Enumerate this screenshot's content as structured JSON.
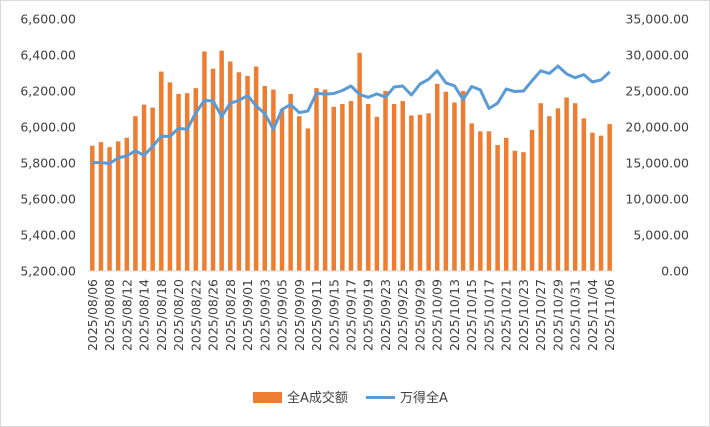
{
  "colors": {
    "bars": "#ED7D31",
    "line": "#5B9BD5",
    "axis": "#D9D9D9",
    "text": "#404040"
  },
  "chart_data": {
    "type": "bar+line",
    "dates": [
      "2025/08/06",
      "2025/08/07",
      "2025/08/08",
      "2025/08/11",
      "2025/08/12",
      "2025/08/13",
      "2025/08/14",
      "2025/08/15",
      "2025/08/18",
      "2025/08/19",
      "2025/08/20",
      "2025/08/21",
      "2025/08/22",
      "2025/08/25",
      "2025/08/26",
      "2025/08/27",
      "2025/08/28",
      "2025/08/29",
      "2025/09/01",
      "2025/09/02",
      "2025/09/03",
      "2025/09/04",
      "2025/09/05",
      "2025/09/08",
      "2025/09/09",
      "2025/09/10",
      "2025/09/11",
      "2025/09/12",
      "2025/09/15",
      "2025/09/16",
      "2025/09/17",
      "2025/09/18",
      "2025/09/19",
      "2025/09/22",
      "2025/09/23",
      "2025/09/24",
      "2025/09/25",
      "2025/09/26",
      "2025/09/29",
      "2025/09/30",
      "2025/10/09",
      "2025/10/10",
      "2025/10/13",
      "2025/10/14",
      "2025/10/15",
      "2025/10/16",
      "2025/10/17",
      "2025/10/20",
      "2025/10/21",
      "2025/10/22",
      "2025/10/23",
      "2025/10/24",
      "2025/10/27",
      "2025/10/28",
      "2025/10/29",
      "2025/10/30",
      "2025/10/31",
      "2025/11/03",
      "2025/11/04",
      "2025/11/05",
      "2025/11/06"
    ],
    "x_tick_labels": [
      "2025/08/06",
      "2025/08/08",
      "2025/08/12",
      "2025/08/14",
      "2025/08/18",
      "2025/08/20",
      "2025/08/22",
      "2025/08/26",
      "2025/08/28",
      "2025/09/01",
      "2025/09/03",
      "2025/09/05",
      "2025/09/09",
      "2025/09/11",
      "2025/09/15",
      "2025/09/17",
      "2025/09/19",
      "2025/09/23",
      "2025/09/25",
      "2025/09/29",
      "2025/10/09",
      "2025/10/13",
      "2025/10/15",
      "2025/10/17",
      "2025/10/21",
      "2025/10/23",
      "2025/10/27",
      "2025/10/29",
      "2025/10/31",
      "2025/11/04",
      "2025/11/06"
    ],
    "series": [
      {
        "name": "万得全A",
        "axis": "left",
        "kind": "line",
        "values": [
          5802,
          5802,
          5797,
          5828,
          5840,
          5868,
          5843,
          5892,
          5949,
          5948,
          5992,
          5988,
          6079,
          6147,
          6145,
          6059,
          6132,
          6147,
          6175,
          6118,
          6074,
          5987,
          6097,
          6125,
          6080,
          6089,
          6188,
          6183,
          6186,
          6203,
          6228,
          6181,
          6165,
          6184,
          6166,
          6222,
          6228,
          6178,
          6239,
          6265,
          6313,
          6245,
          6229,
          6153,
          6225,
          6206,
          6103,
          6132,
          6211,
          6197,
          6200,
          6257,
          6312,
          6297,
          6339,
          6295,
          6274,
          6291,
          6250,
          6262,
          6306
        ]
      },
      {
        "name": "全A成交额",
        "axis": "right",
        "kind": "bar",
        "values": [
          17400,
          17900,
          17200,
          18000,
          18500,
          21500,
          23100,
          22700,
          27700,
          26200,
          24600,
          24700,
          25400,
          30500,
          28100,
          30600,
          29100,
          27600,
          27100,
          28400,
          25700,
          25200,
          22500,
          24600,
          21500,
          19800,
          25400,
          25200,
          22800,
          23200,
          23600,
          30300,
          23200,
          21400,
          25000,
          23200,
          23600,
          21600,
          21700,
          21900,
          26000,
          24900,
          23400,
          25000,
          20500,
          19400,
          19400,
          17500,
          18500,
          16700,
          16500,
          19600,
          23300,
          21500,
          22600,
          24100,
          23300,
          21200,
          19200,
          18800,
          20400
        ]
      }
    ],
    "y_left": {
      "min": 5200,
      "max": 6600,
      "step": 200,
      "tick_labels": [
        "5,200.00",
        "5,400.00",
        "5,600.00",
        "5,800.00",
        "6,000.00",
        "6,200.00",
        "6,400.00",
        "6,600.00"
      ]
    },
    "y_right": {
      "min": 0,
      "max": 35000,
      "step": 5000,
      "tick_labels": [
        "0.00",
        "5,000.00",
        "10,000.00",
        "15,000.00",
        "20,000.00",
        "25,000.00",
        "30,000.00",
        "35,000.00"
      ]
    },
    "legend": {
      "position": "bottom",
      "bar_label": "全A成交额",
      "line_label": "万得全A"
    },
    "grid": false
  }
}
